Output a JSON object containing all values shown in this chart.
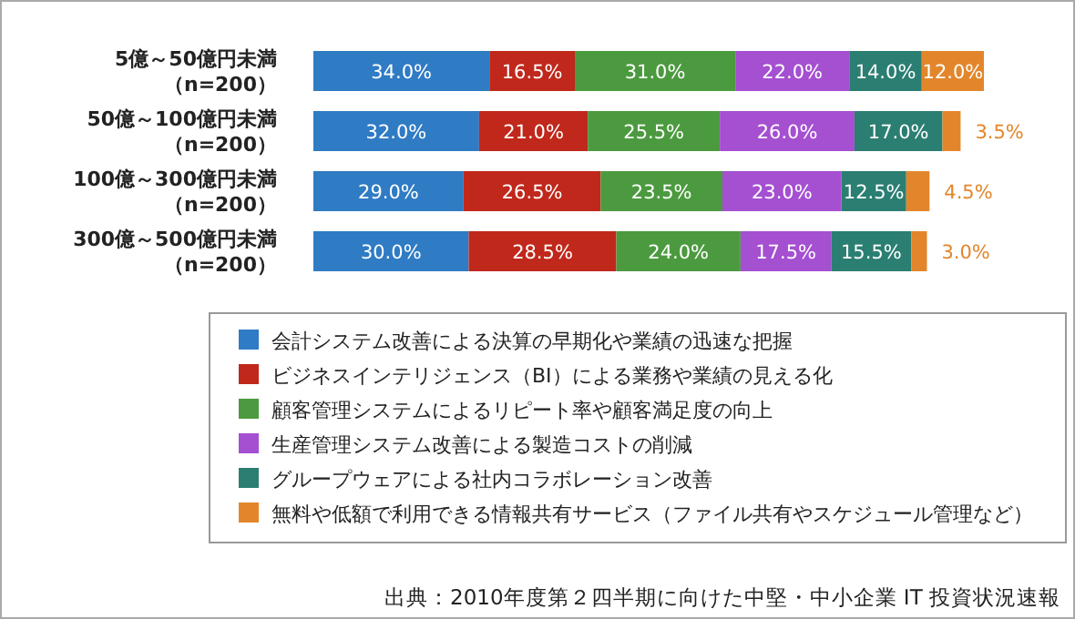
{
  "chart_data": {
    "type": "bar",
    "orientation": "horizontal",
    "stacked": true,
    "legend": "bottom",
    "categories": [
      "5億～50億円未満（n=200）",
      "50億～100億円未満（n=200）",
      "100億～300億円未満（n=200）",
      "300億～500億円未満（n=200）"
    ],
    "series": [
      {
        "name": "会計システム改善による決算の早期化や業績の迅速な把握",
        "color": "#2f7bc4",
        "values": [
          34.0,
          32.0,
          29.0,
          30.0
        ],
        "value_labels": [
          "34.0%",
          "32.0%",
          "29.0%",
          "30.0%"
        ]
      },
      {
        "name": "ビジネスインテリジェンス（BI）による業務や業績の見える化",
        "color": "#c0281b",
        "values": [
          16.5,
          21.0,
          26.5,
          28.5
        ],
        "value_labels": [
          "16.5%",
          "21.0%",
          "26.5%",
          "28.5%"
        ]
      },
      {
        "name": "顧客管理システムによるリピート率や顧客満足度の向上",
        "color": "#4c9a3f",
        "values": [
          31.0,
          25.5,
          23.5,
          24.0
        ],
        "value_labels": [
          "31.0%",
          "25.5%",
          "23.5%",
          "24.0%"
        ]
      },
      {
        "name": "生産管理システム改善による製造コストの削減",
        "color": "#a54fd1",
        "values": [
          22.0,
          26.0,
          23.0,
          17.5
        ],
        "value_labels": [
          "22.0%",
          "26.0%",
          "23.0%",
          "17.5%"
        ]
      },
      {
        "name": "グループウェアによる社内コラボレーション改善",
        "color": "#2b7e72",
        "values": [
          14.0,
          17.0,
          12.5,
          15.5
        ],
        "value_labels": [
          "14.0%",
          "17.0%",
          "12.5%",
          "15.5%"
        ]
      },
      {
        "name": "無料や低額で利用できる情報共有サービス（ファイル共有やスケジュール管理など）",
        "color": "#e3862b",
        "values": [
          12.0,
          3.5,
          4.5,
          3.0
        ],
        "value_labels": [
          "12.0%",
          "3.5%",
          "4.5%",
          "3.0%"
        ]
      }
    ],
    "annotations": [
      "出典：2010年度第２四半期に向けた中堅・中小企業 IT 投資状況速報"
    ]
  }
}
